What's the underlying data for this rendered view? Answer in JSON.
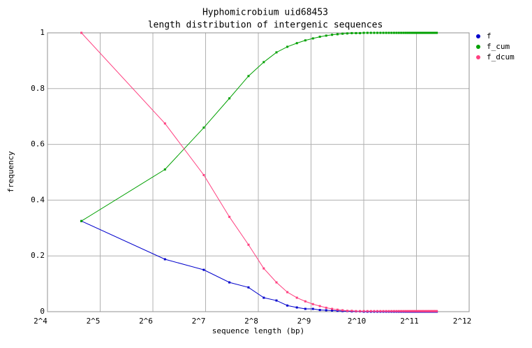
{
  "chart_data": {
    "type": "line",
    "title": "Hyphomicrobium uid68453",
    "subtitle": "length distribution of intergenic sequences",
    "xlabel": "sequence length (bp)",
    "ylabel": "frequency",
    "xscale": "log",
    "xlog_base": 2,
    "x": [
      25,
      75,
      125,
      175,
      225,
      275,
      325,
      375,
      425,
      475,
      525,
      575,
      625,
      675,
      725,
      775,
      825,
      875,
      925,
      975,
      1025,
      1075,
      1125,
      1175,
      1225,
      1275,
      1325,
      1375,
      1425,
      1475,
      1525,
      1575,
      1625,
      1675,
      1725,
      1775,
      1825,
      1875,
      1925,
      1975,
      2025,
      2075,
      2125,
      2175,
      2225,
      2275,
      2325,
      2375,
      2425,
      2475,
      2525,
      2575,
      2625,
      2675
    ],
    "series": [
      {
        "name": "f",
        "color": "#0000cc",
        "values": [
          0.325,
          0.188,
          0.15,
          0.105,
          0.087,
          0.05,
          0.04,
          0.022,
          0.015,
          0.01,
          0.01,
          0.006,
          0.005,
          0.004,
          0.003,
          0.002,
          0.002,
          0.001,
          0.001,
          0.001,
          0,
          0,
          0,
          0,
          0,
          0,
          0,
          0,
          0,
          0,
          0,
          0,
          0,
          0,
          0,
          0,
          0,
          0,
          0,
          0,
          0,
          0,
          0,
          0,
          0,
          0,
          0,
          0,
          0,
          0,
          0,
          0,
          0,
          0
        ]
      },
      {
        "name": "f_cum",
        "color": "#00a000",
        "values": [
          0.325,
          0.51,
          0.66,
          0.765,
          0.845,
          0.895,
          0.93,
          0.95,
          0.963,
          0.973,
          0.98,
          0.986,
          0.99,
          0.993,
          0.995,
          0.997,
          0.998,
          0.999,
          0.999,
          0.999,
          1,
          1,
          1,
          1,
          1,
          1,
          1,
          1,
          1,
          1,
          1,
          1,
          1,
          1,
          1,
          1,
          1,
          1,
          1,
          1,
          1,
          1,
          1,
          1,
          1,
          1,
          1,
          1,
          1,
          1,
          1,
          1,
          1,
          1
        ]
      },
      {
        "name": "f_dcum",
        "color": "#ff4080",
        "values": [
          1,
          0.675,
          0.49,
          0.34,
          0.24,
          0.155,
          0.105,
          0.07,
          0.05,
          0.037,
          0.027,
          0.02,
          0.014,
          0.01,
          0.007,
          0.005,
          0.003,
          0.003,
          0.002,
          0.002,
          0.002,
          0.002,
          0.002,
          0.002,
          0.002,
          0.002,
          0.002,
          0.002,
          0.002,
          0.002,
          0.002,
          0.002,
          0.002,
          0.002,
          0.002,
          0.002,
          0.002,
          0.002,
          0.002,
          0.002,
          0.002,
          0.002,
          0.002,
          0.002,
          0.002,
          0.002,
          0.002,
          0.002,
          0.002,
          0.002,
          0.002,
          0.002,
          0.002,
          0.002
        ]
      }
    ],
    "xlim": [
      16,
      4096
    ],
    "xticks": [
      {
        "value": 16,
        "label": "2^4"
      },
      {
        "value": 32,
        "label": "2^5"
      },
      {
        "value": 64,
        "label": "2^6"
      },
      {
        "value": 128,
        "label": "2^7"
      },
      {
        "value": 256,
        "label": "2^8"
      },
      {
        "value": 512,
        "label": "2^9"
      },
      {
        "value": 1024,
        "label": "2^10"
      },
      {
        "value": 2048,
        "label": "2^11"
      },
      {
        "value": 4096,
        "label": "2^12"
      }
    ],
    "ylim": [
      0,
      1
    ],
    "yticks": [
      0,
      0.2,
      0.4,
      0.6,
      0.8,
      1
    ],
    "grid": true,
    "legend": "right"
  }
}
